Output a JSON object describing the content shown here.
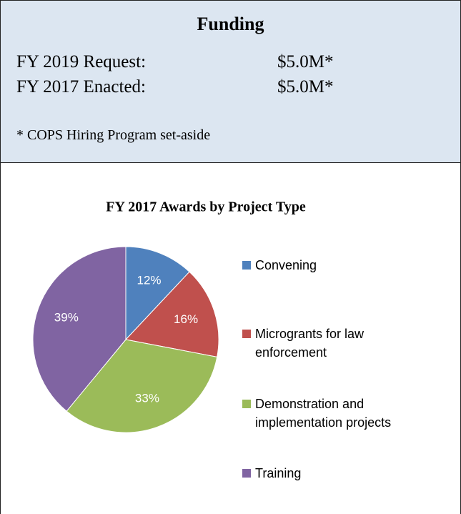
{
  "funding": {
    "title": "Funding",
    "rows": [
      [
        "FY 2019 Request:",
        "$5.0M*"
      ],
      [
        "FY 2017 Enacted:",
        "$5.0M*"
      ]
    ],
    "note": "* COPS Hiring Program set-aside"
  },
  "chart_data": {
    "type": "pie",
    "title": "FY 2017 Awards by Project Type",
    "categories": [
      "Convening",
      "Microgrants for law enforcement",
      "Demonstration and implementation projects",
      "Training"
    ],
    "values": [
      12,
      16,
      33,
      39
    ],
    "value_labels": [
      "12%",
      "16%",
      "33%",
      "39%"
    ],
    "colors": [
      "#4f81bd",
      "#c0504d",
      "#9bbb59",
      "#8064a2"
    ],
    "legend": "right"
  }
}
